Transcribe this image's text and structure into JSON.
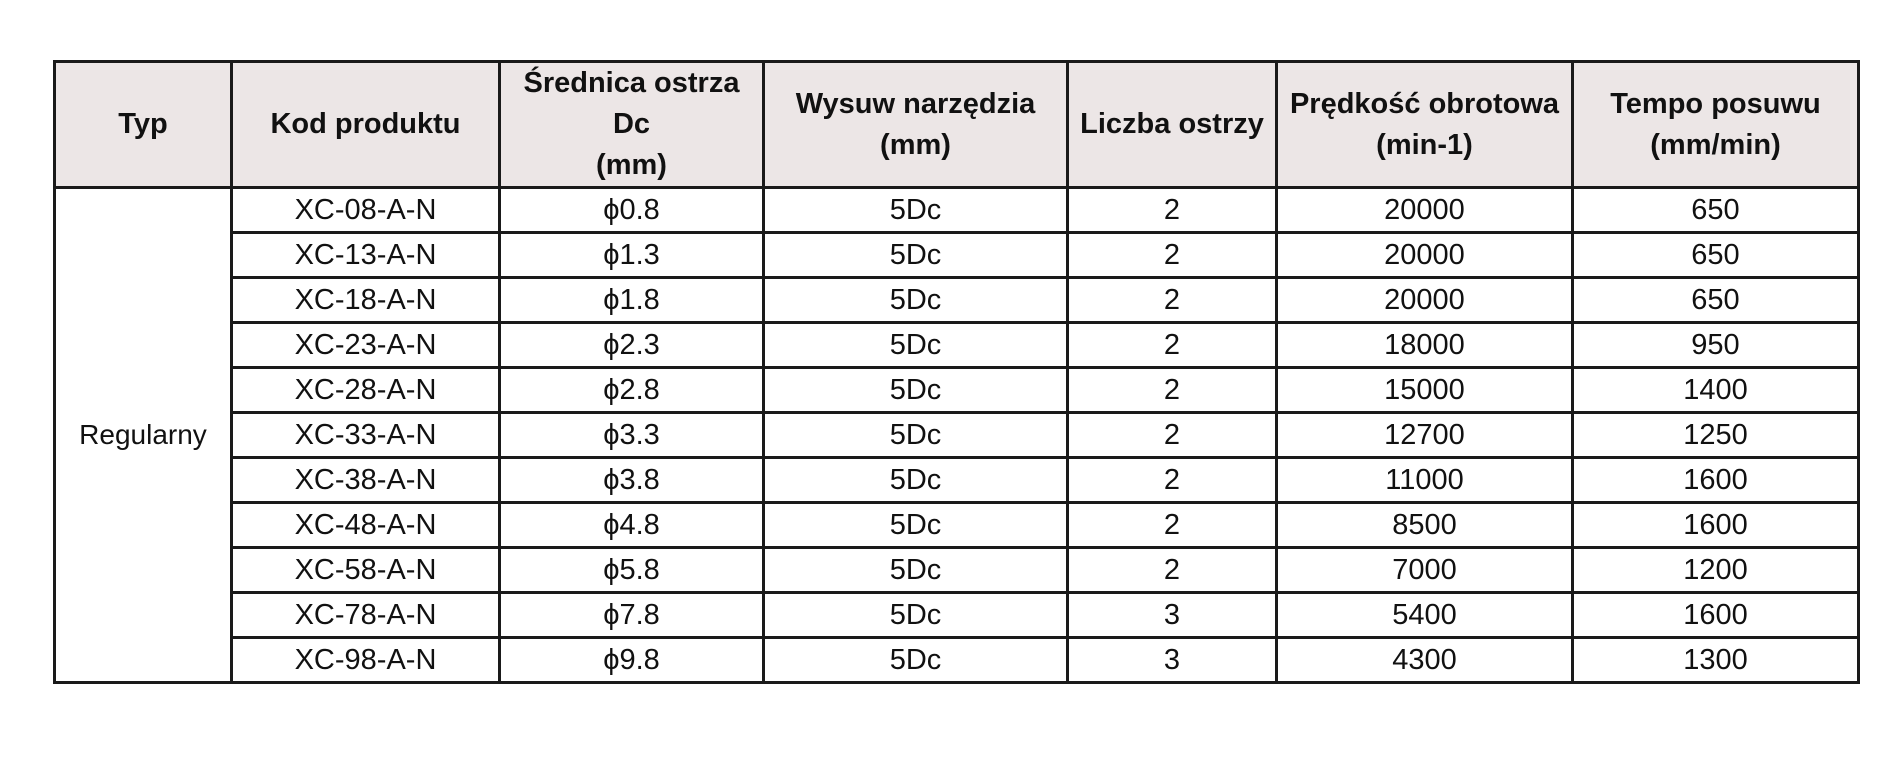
{
  "table": {
    "headers": [
      "Typ",
      "Kod produktu",
      "Średnica ostrza Dc\n(mm)",
      "Wysuw narzędzia\n(mm)",
      "Liczba ostrzy",
      "Prędkość obrotowa\n(min-1)",
      "Tempo posuwu\n(mm/min)"
    ],
    "type_label": "Regularny",
    "rows": [
      {
        "code": "XC-08-A-N",
        "diameter": "ϕ0.8",
        "extension": "5Dc",
        "flutes": "2",
        "speed": "20000",
        "feed": "650"
      },
      {
        "code": "XC-13-A-N",
        "diameter": "ϕ1.3",
        "extension": "5Dc",
        "flutes": "2",
        "speed": "20000",
        "feed": "650"
      },
      {
        "code": "XC-18-A-N",
        "diameter": "ϕ1.8",
        "extension": "5Dc",
        "flutes": "2",
        "speed": "20000",
        "feed": "650"
      },
      {
        "code": "XC-23-A-N",
        "diameter": "ϕ2.3",
        "extension": "5Dc",
        "flutes": "2",
        "speed": "18000",
        "feed": "950"
      },
      {
        "code": "XC-28-A-N",
        "diameter": "ϕ2.8",
        "extension": "5Dc",
        "flutes": "2",
        "speed": "15000",
        "feed": "1400"
      },
      {
        "code": "XC-33-A-N",
        "diameter": "ϕ3.3",
        "extension": "5Dc",
        "flutes": "2",
        "speed": "12700",
        "feed": "1250"
      },
      {
        "code": "XC-38-A-N",
        "diameter": "ϕ3.8",
        "extension": "5Dc",
        "flutes": "2",
        "speed": "11000",
        "feed": "1600"
      },
      {
        "code": "XC-48-A-N",
        "diameter": "ϕ4.8",
        "extension": "5Dc",
        "flutes": "2",
        "speed": "8500",
        "feed": "1600"
      },
      {
        "code": "XC-58-A-N",
        "diameter": "ϕ5.8",
        "extension": "5Dc",
        "flutes": "2",
        "speed": "7000",
        "feed": "1200"
      },
      {
        "code": "XC-78-A-N",
        "diameter": "ϕ7.8",
        "extension": "5Dc",
        "flutes": "3",
        "speed": "5400",
        "feed": "1600"
      },
      {
        "code": "XC-98-A-N",
        "diameter": "ϕ9.8",
        "extension": "5Dc",
        "flutes": "3",
        "speed": "4300",
        "feed": "1300"
      }
    ]
  },
  "colors": {
    "header_background": "#ece6e6",
    "border": "#1a1a1a",
    "text": "#111111"
  }
}
